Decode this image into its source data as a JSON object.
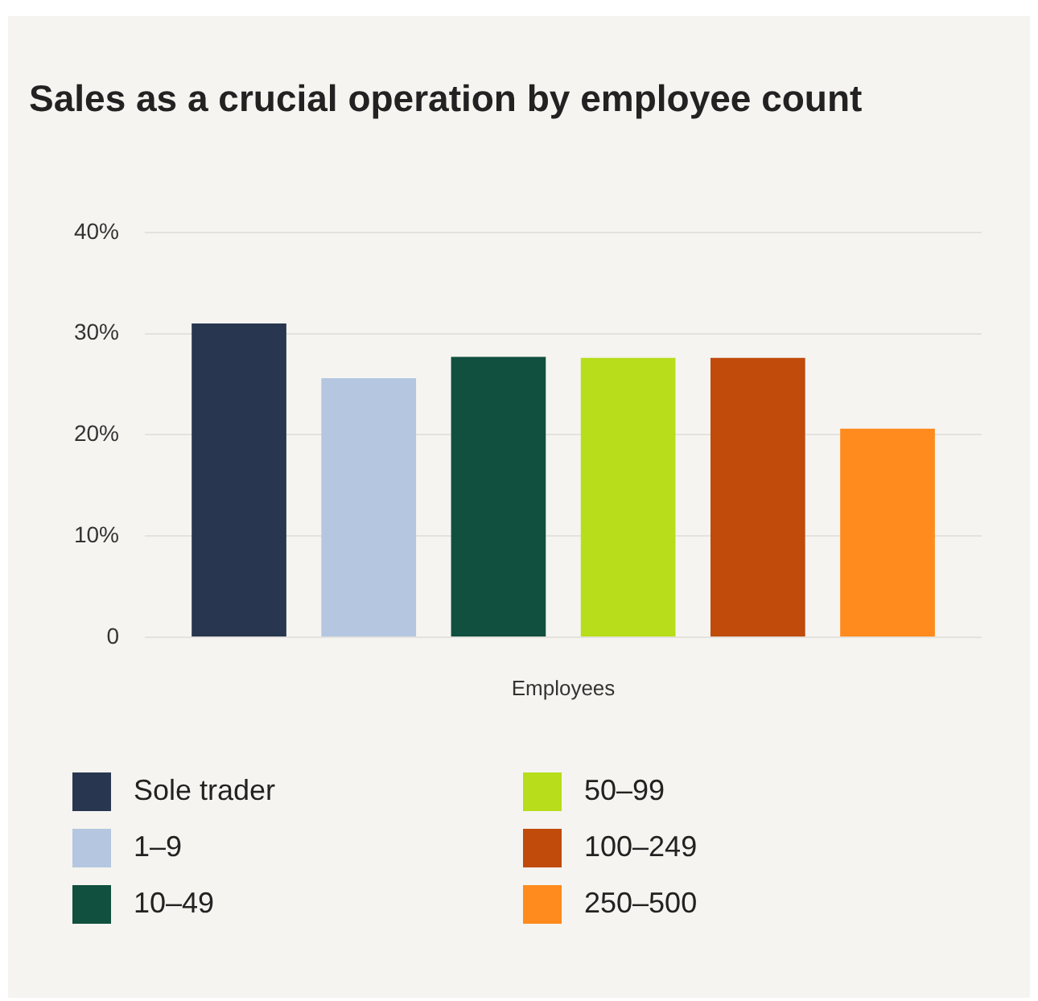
{
  "chart_data": {
    "type": "bar",
    "title": "Sales as a crucial operation by employee count",
    "xlabel": "Employees",
    "categories": [
      null
    ],
    "series": [
      {
        "name": "Sole trader",
        "color": "#28374f",
        "values": [
          31
        ]
      },
      {
        "name": "1–9",
        "color": "#b4c6e0",
        "values": [
          25.6
        ]
      },
      {
        "name": "10–49",
        "color": "#114f3f",
        "values": [
          27.7
        ]
      },
      {
        "name": "50–99",
        "color": "#b7dd1b",
        "values": [
          27.6
        ]
      },
      {
        "name": "100–249",
        "color": "#c04b0b",
        "values": [
          27.6
        ]
      },
      {
        "name": "250–500",
        "color": "#ff8a1d",
        "values": [
          20.6
        ]
      }
    ],
    "ylim": [
      0,
      40
    ],
    "yticks": [
      0,
      {
        "value": 10,
        "label": "10%"
      },
      {
        "value": 20,
        "label": "20%"
      },
      {
        "value": 30,
        "label": "30%"
      },
      {
        "value": 40,
        "label": "40%"
      }
    ],
    "grid": "y",
    "legend": "bottom"
  }
}
